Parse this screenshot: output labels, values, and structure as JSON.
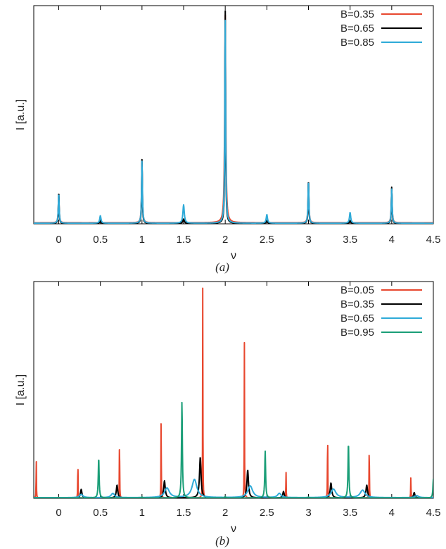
{
  "chart_data": [
    {
      "type": "line",
      "panel_label": "(a)",
      "xlabel": "ν",
      "ylabel": "I [a.u.]",
      "xlim": [
        -0.3,
        4.5
      ],
      "ylim": [
        0,
        1.0
      ],
      "xticks": [
        "0",
        "0.5",
        "1",
        "1.5",
        "2",
        "2.5",
        "3",
        "3.5",
        "4",
        "4.5"
      ],
      "yticks": [],
      "grid": false,
      "legend_position": "top-right",
      "series": [
        {
          "name": "B=0.35",
          "color": "#e8472e",
          "baseline": 0.005,
          "peaks": [
            {
              "x": 0.0,
              "height": 0.13,
              "width": 0.012
            },
            {
              "x": 0.5,
              "height": 0.006,
              "width": 0.02
            },
            {
              "x": 1.0,
              "height": 0.28,
              "width": 0.012
            },
            {
              "x": 1.5,
              "height": 0.015,
              "width": 0.02
            },
            {
              "x": 2.0,
              "height": 0.97,
              "width": 0.015
            },
            {
              "x": 2.5,
              "height": 0.008,
              "width": 0.02
            },
            {
              "x": 3.0,
              "height": 0.2,
              "width": 0.012
            },
            {
              "x": 3.5,
              "height": 0.008,
              "width": 0.02
            },
            {
              "x": 4.0,
              "height": 0.16,
              "width": 0.012
            }
          ]
        },
        {
          "name": "B=0.65",
          "color": "#000000",
          "baseline": 0.002,
          "peaks": [
            {
              "x": 0.0,
              "height": 0.15,
              "width": 0.01
            },
            {
              "x": 0.5,
              "height": 0.01,
              "width": 0.02
            },
            {
              "x": 1.0,
              "height": 0.3,
              "width": 0.01
            },
            {
              "x": 1.5,
              "height": 0.02,
              "width": 0.02
            },
            {
              "x": 2.0,
              "height": 1.0,
              "width": 0.01
            },
            {
              "x": 2.5,
              "height": 0.012,
              "width": 0.02
            },
            {
              "x": 3.0,
              "height": 0.21,
              "width": 0.01
            },
            {
              "x": 3.5,
              "height": 0.012,
              "width": 0.02
            },
            {
              "x": 4.0,
              "height": 0.17,
              "width": 0.01
            }
          ]
        },
        {
          "name": "B=0.85",
          "color": "#2eaad8",
          "baseline": 0.003,
          "peaks": [
            {
              "x": 0.0,
              "height": 0.14,
              "width": 0.012
            },
            {
              "x": 0.5,
              "height": 0.035,
              "width": 0.018
            },
            {
              "x": 1.0,
              "height": 0.29,
              "width": 0.012
            },
            {
              "x": 1.5,
              "height": 0.085,
              "width": 0.02
            },
            {
              "x": 2.0,
              "height": 0.95,
              "width": 0.012
            },
            {
              "x": 2.5,
              "height": 0.04,
              "width": 0.018
            },
            {
              "x": 3.0,
              "height": 0.2,
              "width": 0.012
            },
            {
              "x": 3.5,
              "height": 0.05,
              "width": 0.018
            },
            {
              "x": 4.0,
              "height": 0.16,
              "width": 0.012
            }
          ]
        }
      ]
    },
    {
      "type": "line",
      "panel_label": "(b)",
      "xlabel": "ν",
      "ylabel": "I [a.u.]",
      "xlim": [
        -0.3,
        4.5
      ],
      "ylim": [
        0,
        1.0
      ],
      "xticks": [
        "0",
        "0.5",
        "1",
        "1.5",
        "2",
        "2.5",
        "3",
        "3.5",
        "4",
        "4.5"
      ],
      "yticks": [],
      "grid": false,
      "legend_position": "top-right",
      "series": [
        {
          "name": "B=0.05",
          "color": "#e8472e",
          "baseline": 0.002,
          "peaks": [
            {
              "x": -0.27,
              "height": 0.2,
              "width": 0.004
            },
            {
              "x": 0.23,
              "height": 0.2,
              "width": 0.004
            },
            {
              "x": 0.73,
              "height": 0.34,
              "width": 0.004
            },
            {
              "x": 1.23,
              "height": 0.41,
              "width": 0.004
            },
            {
              "x": 1.73,
              "height": 1.0,
              "width": 0.004
            },
            {
              "x": 2.23,
              "height": 0.74,
              "width": 0.004
            },
            {
              "x": 2.73,
              "height": 0.14,
              "width": 0.004
            },
            {
              "x": 3.23,
              "height": 0.37,
              "width": 0.004
            },
            {
              "x": 3.73,
              "height": 0.3,
              "width": 0.004
            },
            {
              "x": 4.23,
              "height": 0.11,
              "width": 0.004
            }
          ]
        },
        {
          "name": "B=0.35",
          "color": "#000000",
          "baseline": 0.002,
          "peaks": [
            {
              "x": 0.27,
              "height": 0.04,
              "width": 0.02
            },
            {
              "x": 0.7,
              "height": 0.06,
              "width": 0.02
            },
            {
              "x": 1.27,
              "height": 0.08,
              "width": 0.022
            },
            {
              "x": 1.7,
              "height": 0.19,
              "width": 0.022
            },
            {
              "x": 2.27,
              "height": 0.13,
              "width": 0.022
            },
            {
              "x": 2.7,
              "height": 0.03,
              "width": 0.02
            },
            {
              "x": 3.27,
              "height": 0.07,
              "width": 0.022
            },
            {
              "x": 3.7,
              "height": 0.06,
              "width": 0.022
            },
            {
              "x": 4.27,
              "height": 0.025,
              "width": 0.02
            }
          ]
        },
        {
          "name": "B=0.65",
          "color": "#2eaad8",
          "baseline": 0.003,
          "peaks": [
            {
              "x": 0.27,
              "height": 0.015,
              "width": 0.05
            },
            {
              "x": 0.65,
              "height": 0.02,
              "width": 0.05
            },
            {
              "x": 1.3,
              "height": 0.045,
              "width": 0.07
            },
            {
              "x": 1.63,
              "height": 0.085,
              "width": 0.07
            },
            {
              "x": 2.3,
              "height": 0.055,
              "width": 0.07
            },
            {
              "x": 2.65,
              "height": 0.02,
              "width": 0.05
            },
            {
              "x": 3.3,
              "height": 0.04,
              "width": 0.07
            },
            {
              "x": 3.65,
              "height": 0.035,
              "width": 0.07
            },
            {
              "x": 4.3,
              "height": 0.01,
              "width": 0.05
            }
          ]
        },
        {
          "name": "B=0.95",
          "color": "#1a9e77",
          "baseline": 0.002,
          "peaks": [
            {
              "x": 0.0,
              "height": 0.002,
              "width": 0.015
            },
            {
              "x": 0.48,
              "height": 0.19,
              "width": 0.012
            },
            {
              "x": 1.0,
              "height": 0.004,
              "width": 0.015
            },
            {
              "x": 1.48,
              "height": 0.45,
              "width": 0.012
            },
            {
              "x": 2.0,
              "height": 0.006,
              "width": 0.015
            },
            {
              "x": 2.48,
              "height": 0.22,
              "width": 0.012
            },
            {
              "x": 3.0,
              "height": 0.004,
              "width": 0.015
            },
            {
              "x": 3.48,
              "height": 0.26,
              "width": 0.012
            },
            {
              "x": 4.5,
              "height": 0.09,
              "width": 0.012
            }
          ]
        }
      ]
    }
  ]
}
